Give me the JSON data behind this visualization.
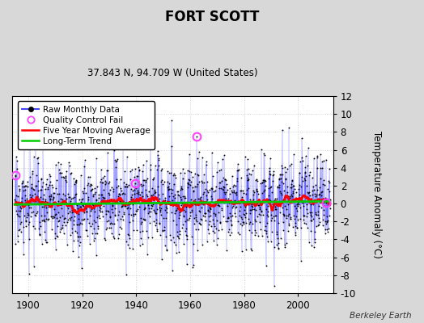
{
  "title": "FORT SCOTT",
  "subtitle": "37.843 N, 94.709 W (United States)",
  "ylabel": "Temperature Anomaly (°C)",
  "xlabel_years": [
    1900,
    1920,
    1940,
    1960,
    1980,
    2000
  ],
  "ylim": [
    -10,
    12
  ],
  "xlim": [
    1894,
    2013
  ],
  "yticks": [
    -10,
    -8,
    -6,
    -4,
    -2,
    0,
    2,
    4,
    6,
    8,
    10,
    12
  ],
  "background_color": "#d8d8d8",
  "plot_bg_color": "#ffffff",
  "raw_line_color": "#4444ff",
  "raw_dot_color": "#000000",
  "qc_fail_color": "#ff44ff",
  "moving_avg_color": "#ff0000",
  "trend_color": "#00cc00",
  "grid_color": "#cccccc",
  "seed": 17,
  "n_years": 117,
  "start_year": 1895,
  "noise_std": 2.5,
  "qc_fail_years": [
    1895.3,
    1939.5,
    1962.5,
    2010.5
  ],
  "qc_fail_values": [
    3.2,
    2.3,
    7.5,
    0.1
  ],
  "attribution": "Berkeley Earth"
}
